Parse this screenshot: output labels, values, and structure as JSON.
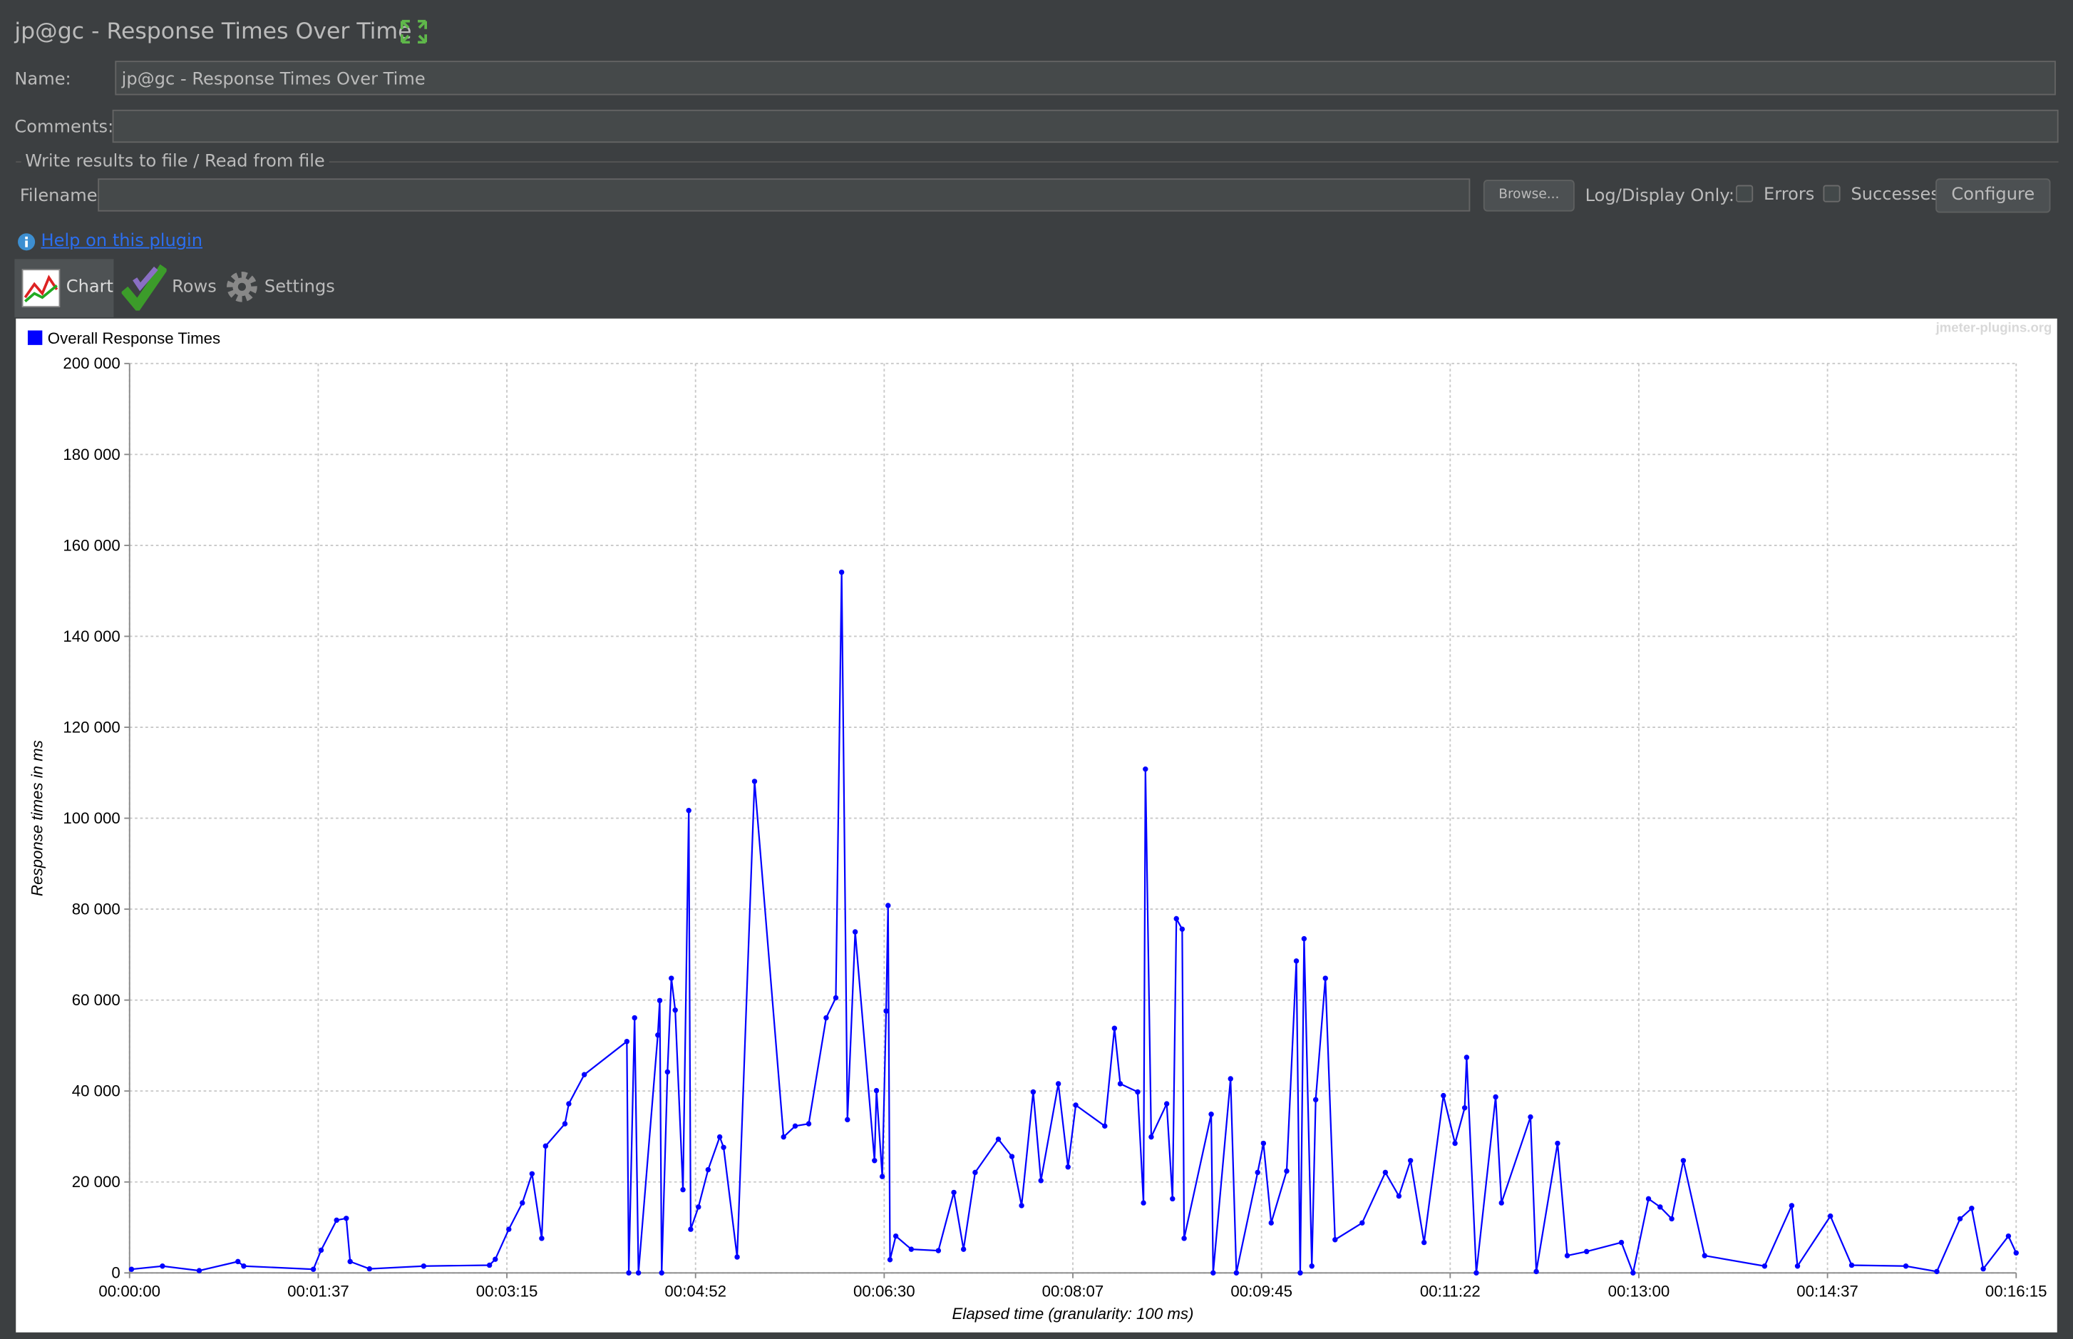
{
  "header": {
    "title": "jp@gc - Response Times Over Time"
  },
  "form": {
    "name_label": "Name:",
    "name_value": "jp@gc - Response Times Over Time",
    "comments_label": "Comments:",
    "file_section": "Write results to file / Read from file",
    "filename_label": "Filename",
    "browse": "Browse...",
    "log_display": "Log/Display Only:",
    "errors": "Errors",
    "successes": "Successes",
    "configure": "Configure"
  },
  "help": "Help on this plugin",
  "tabs": [
    "Chart",
    "Rows",
    "Settings"
  ],
  "watermark": "jmeter-plugins.org",
  "chart_data": {
    "type": "line",
    "xlabel": "Elapsed time (granularity: 100 ms)",
    "ylabel": "Response times in ms",
    "grid": true,
    "legend": "top-left",
    "xlim": [
      0,
      975
    ],
    "ylim": [
      0,
      200000
    ],
    "xticks": [
      {
        "value": 0,
        "label": "00:00:00"
      },
      {
        "value": 97.5,
        "label": "00:01:37"
      },
      {
        "value": 195,
        "label": "00:03:15"
      },
      {
        "value": 292.5,
        "label": "00:04:52"
      },
      {
        "value": 390,
        "label": "00:06:30"
      },
      {
        "value": 487.5,
        "label": "00:08:07"
      },
      {
        "value": 585,
        "label": "00:09:45"
      },
      {
        "value": 682.5,
        "label": "00:11:22"
      },
      {
        "value": 780,
        "label": "00:13:00"
      },
      {
        "value": 877.5,
        "label": "00:14:37"
      },
      {
        "value": 975,
        "label": "00:16:15"
      }
    ],
    "yticks": [
      0,
      {
        "value": 20000,
        "label": "20 000"
      },
      {
        "value": 40000,
        "label": "40 000"
      },
      {
        "value": 60000,
        "label": "60 000"
      },
      {
        "value": 80000,
        "label": "80 000"
      },
      {
        "value": 100000,
        "label": "100 000"
      },
      {
        "value": 120000,
        "label": "120 000"
      },
      {
        "value": 140000,
        "label": "140 000"
      },
      {
        "value": 160000,
        "label": "160 000"
      },
      {
        "value": 180000,
        "label": "180 000"
      },
      {
        "value": 200000,
        "label": "200 000"
      }
    ],
    "x": [
      1,
      17,
      36,
      56,
      59,
      95,
      99,
      107,
      112,
      114,
      124,
      152,
      186,
      189,
      196,
      203,
      208,
      213,
      215,
      225,
      227,
      235,
      257,
      258,
      261,
      263,
      273,
      274,
      275,
      278,
      280,
      282,
      286,
      289,
      290,
      294,
      299,
      305,
      307,
      314,
      323,
      338,
      344,
      351,
      360,
      365,
      368,
      371,
      375,
      385,
      386,
      389,
      391,
      392,
      393,
      396,
      404,
      418,
      426,
      431,
      437,
      449,
      456,
      461,
      467,
      471,
      480,
      485,
      489,
      504,
      509,
      512,
      521,
      524,
      525,
      528,
      536,
      539,
      541,
      544,
      545,
      559,
      560,
      569,
      572,
      583,
      586,
      590,
      598,
      603,
      605,
      607,
      611,
      613,
      618,
      623,
      637,
      649,
      656,
      662,
      669,
      679,
      685,
      690,
      691,
      696,
      706,
      709,
      724,
      727,
      738,
      743,
      753,
      771,
      777,
      785,
      791,
      797,
      803,
      814,
      845,
      859,
      862,
      879,
      890,
      918,
      934,
      946,
      952,
      958,
      971,
      975
    ],
    "series": [
      {
        "name": "Overall Response Times",
        "color": "#0000ff",
        "values": [
          800,
          1500,
          500,
          2500,
          1500,
          800,
          5000,
          11600,
          12000,
          2500,
          900,
          1500,
          1700,
          3000,
          9600,
          15400,
          21800,
          7600,
          27900,
          32800,
          37200,
          43600,
          50900,
          0,
          56100,
          0,
          52300,
          59900,
          0,
          44200,
          64800,
          57800,
          18300,
          101700,
          9600,
          14500,
          22700,
          29900,
          27600,
          3500,
          108100,
          29900,
          32300,
          32800,
          56100,
          60500,
          154100,
          33700,
          75000,
          24700,
          40100,
          21200,
          57600,
          80800,
          2900,
          8100,
          5200,
          4900,
          17700,
          5200,
          22100,
          29400,
          25600,
          14800,
          39800,
          20300,
          41600,
          23300,
          36900,
          32300,
          53800,
          41600,
          39800,
          15400,
          110800,
          29900,
          37200,
          16300,
          77900,
          75600,
          7600,
          34900,
          0,
          42700,
          0,
          22100,
          28500,
          11000,
          22400,
          68600,
          0,
          73500,
          1500,
          38100,
          64800,
          7300,
          11000,
          22100,
          16900,
          24700,
          6700,
          39000,
          28500,
          36300,
          47400,
          0,
          38700,
          15400,
          34300,
          300,
          28500,
          3800,
          4700,
          6700,
          0,
          16300,
          14500,
          11900,
          24700,
          3800,
          1500,
          14800,
          1500,
          12500,
          1700,
          1500,
          300,
          11900,
          14200,
          900,
          8100,
          4400
        ]
      }
    ]
  }
}
